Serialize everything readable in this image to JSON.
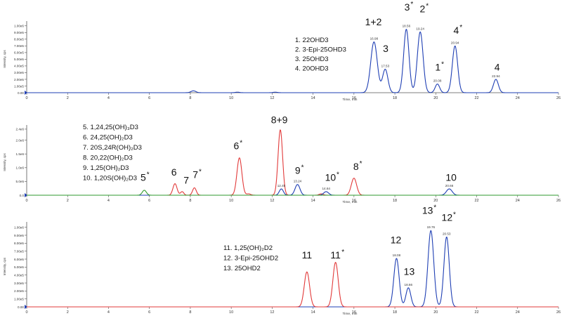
{
  "chart_data": [
    {
      "type": "line",
      "ylabel": "Intensity, cps",
      "xlabel": "Time, min",
      "xlim": [
        0,
        26
      ],
      "ylim": [
        0,
        1050000
      ],
      "xticks": [
        0,
        2,
        4,
        6,
        8,
        10,
        12,
        14,
        16,
        18,
        20,
        22,
        24,
        26
      ],
      "yticks": [
        {
          "v": 0,
          "label": "0.00"
        },
        {
          "v": 100000,
          "label": "1.00e5"
        },
        {
          "v": 200000,
          "label": "2.00e5"
        },
        {
          "v": 300000,
          "label": "3.00e5"
        },
        {
          "v": 400000,
          "label": "4.00e5"
        },
        {
          "v": 500000,
          "label": "5.00e5"
        },
        {
          "v": 600000,
          "label": "6.00e5"
        },
        {
          "v": 700000,
          "label": "7.00e5"
        },
        {
          "v": 800000,
          "label": "8.00e5"
        },
        {
          "v": 900000,
          "label": "9.00e5"
        },
        {
          "v": 1000000,
          "label": "1.00e6"
        }
      ],
      "legend": [
        "1.   22OHD3",
        "2.   3-Epi-25OHD3",
        "3.   25OHD3",
        "4.   20OHD3"
      ],
      "series": [
        {
          "color": "#1f3fb4",
          "peaks": [
            {
              "t": 8.15,
              "h": 28000,
              "w": 0.12
            },
            {
              "t": 10.3,
              "h": 8000,
              "w": 0.1
            },
            {
              "t": 12.15,
              "h": 8000,
              "w": 0.1
            },
            {
              "t": 16.98,
              "h": 760000,
              "w": 0.16
            },
            {
              "t": 17.53,
              "h": 350000,
              "w": 0.13
            },
            {
              "t": 18.56,
              "h": 950000,
              "w": 0.13
            },
            {
              "t": 19.24,
              "h": 910000,
              "w": 0.14
            },
            {
              "t": 20.08,
              "h": 130000,
              "w": 0.11
            },
            {
              "t": 20.94,
              "h": 700000,
              "w": 0.13
            },
            {
              "t": 22.94,
              "h": 200000,
              "w": 0.12
            }
          ]
        }
      ],
      "peak_labels": [
        {
          "t": 16.98,
          "h": 760000,
          "text": "16.98"
        },
        {
          "t": 17.53,
          "h": 350000,
          "text": "17.53"
        },
        {
          "t": 18.56,
          "h": 950000,
          "text": "18.56"
        },
        {
          "t": 19.24,
          "h": 910000,
          "text": "19.24"
        },
        {
          "t": 20.08,
          "h": 130000,
          "text": "20.08"
        },
        {
          "t": 20.94,
          "h": 700000,
          "text": "20.94"
        },
        {
          "t": 22.94,
          "h": 200000,
          "text": "22.94"
        }
      ],
      "annotations": [
        {
          "text": "1+2",
          "t": 16.95,
          "y": 1010000,
          "star": false
        },
        {
          "text": "3",
          "t": 17.55,
          "y": 610000,
          "star": false
        },
        {
          "text": "3",
          "t": 18.6,
          "y": 1230000,
          "star": true
        },
        {
          "text": "2",
          "t": 19.35,
          "y": 1200000,
          "star": true
        },
        {
          "text": "1",
          "t": 20.1,
          "y": 330000,
          "star": true
        },
        {
          "text": "4",
          "t": 21.0,
          "y": 880000,
          "star": true
        },
        {
          "text": "4",
          "t": 23.0,
          "y": 330000,
          "star": false
        }
      ]
    },
    {
      "type": "line",
      "ylabel": "Intensity, cps",
      "xlabel": "Time, min",
      "xlim": [
        0,
        26
      ],
      "ylim": [
        0,
        2500000
      ],
      "xticks": [
        0,
        2,
        4,
        6,
        8,
        10,
        12,
        14,
        16,
        18,
        20,
        22,
        24,
        26
      ],
      "yticks": [
        {
          "v": 0,
          "label": "0.0"
        },
        {
          "v": 500000,
          "label": "5.0e5"
        },
        {
          "v": 1000000,
          "label": "1.0e6"
        },
        {
          "v": 1500000,
          "label": "1.5e6"
        },
        {
          "v": 2000000,
          "label": "2.0e6"
        },
        {
          "v": 2400000,
          "label": "2.4e6"
        }
      ],
      "legend": [
        "5.   1,24,25(OH)₃D3",
        "6.   24,25(OH)₂D3",
        "7.   20S,24R(OH)₂D3",
        "8.   20,22(OH)₂D3",
        "9.   1,25(OH)₂D3",
        "10.  1,20S(OH)₂D3"
      ],
      "series": [
        {
          "color": "#e23a3a",
          "peaks": [
            {
              "t": 7.25,
              "h": 420000,
              "w": 0.1
            },
            {
              "t": 7.6,
              "h": 130000,
              "w": 0.08
            },
            {
              "t": 8.2,
              "h": 270000,
              "w": 0.09
            },
            {
              "t": 10.4,
              "h": 1360000,
              "w": 0.12
            },
            {
              "t": 10.85,
              "h": 50000,
              "w": 0.1
            },
            {
              "t": 12.4,
              "h": 2380000,
              "w": 0.11
            },
            {
              "t": 14.4,
              "h": 50000,
              "w": 0.1
            },
            {
              "t": 16.0,
              "h": 620000,
              "w": 0.13
            }
          ]
        },
        {
          "color": "#1f3fb4",
          "peaks": [
            {
              "t": 12.45,
              "h": 230000,
              "w": 0.1
            },
            {
              "t": 13.24,
              "h": 390000,
              "w": 0.12
            },
            {
              "t": 14.64,
              "h": 130000,
              "w": 0.12
            },
            {
              "t": 20.66,
              "h": 230000,
              "w": 0.14
            }
          ]
        },
        {
          "color": "#2e9a2e",
          "peaks": [
            {
              "t": 5.75,
              "h": 180000,
              "w": 0.1
            }
          ]
        }
      ],
      "peak_labels": [
        {
          "t": 12.45,
          "h": 230000,
          "text": "12.45"
        },
        {
          "t": 13.24,
          "h": 390000,
          "text": "13.24"
        },
        {
          "t": 14.64,
          "h": 130000,
          "text": "14.64"
        },
        {
          "t": 20.66,
          "h": 230000,
          "text": "20.66"
        }
      ],
      "annotations": [
        {
          "text": "5",
          "t": 5.7,
          "y": 520000,
          "star": true
        },
        {
          "text": "6",
          "t": 7.2,
          "y": 720000,
          "star": false
        },
        {
          "text": "7",
          "t": 7.8,
          "y": 420000,
          "star": false
        },
        {
          "text": "7",
          "t": 8.25,
          "y": 620000,
          "star": true
        },
        {
          "text": "6",
          "t": 10.25,
          "y": 1670000,
          "star": true
        },
        {
          "text": "8+9",
          "t": 12.35,
          "y": 2620000,
          "star": false
        },
        {
          "text": "9",
          "t": 13.25,
          "y": 780000,
          "star": true
        },
        {
          "text": "10",
          "t": 14.85,
          "y": 520000,
          "star": true
        },
        {
          "text": "8",
          "t": 16.1,
          "y": 920000,
          "star": true
        },
        {
          "text": "10",
          "t": 20.75,
          "y": 520000,
          "star": false
        }
      ]
    },
    {
      "type": "line",
      "ylabel": "Intensity, cps",
      "xlabel": "Time, min",
      "xlim": [
        0,
        26
      ],
      "ylim": [
        0,
        1050000
      ],
      "xticks": [
        0,
        2,
        4,
        6,
        8,
        10,
        12,
        14,
        16,
        18,
        20,
        22,
        24,
        26
      ],
      "yticks": [
        {
          "v": 0,
          "label": "0.00"
        },
        {
          "v": 100000,
          "label": "1.00e5"
        },
        {
          "v": 200000,
          "label": "2.00e5"
        },
        {
          "v": 300000,
          "label": "3.00e5"
        },
        {
          "v": 400000,
          "label": "4.00e5"
        },
        {
          "v": 500000,
          "label": "5.00e5"
        },
        {
          "v": 600000,
          "label": "6.00e5"
        },
        {
          "v": 700000,
          "label": "7.00e5"
        },
        {
          "v": 800000,
          "label": "8.00e5"
        },
        {
          "v": 900000,
          "label": "9.00e5"
        },
        {
          "v": 1000000,
          "label": "1.00e6"
        }
      ],
      "legend": [
        "11.  1,25(OH)₂D2",
        "12.  3-Epi-25OHD2",
        "13.  25OHD2"
      ],
      "series": [
        {
          "color": "#1f3fb4",
          "peaks": [
            {
              "t": 18.08,
              "h": 610000,
              "w": 0.13
            },
            {
              "t": 18.66,
              "h": 240000,
              "w": 0.12
            },
            {
              "t": 19.76,
              "h": 960000,
              "w": 0.14
            },
            {
              "t": 20.53,
              "h": 880000,
              "w": 0.13
            }
          ]
        },
        {
          "color": "#e23a3a",
          "peaks": [
            {
              "t": 13.7,
              "h": 440000,
              "w": 0.13
            },
            {
              "t": 15.1,
              "h": 560000,
              "w": 0.13
            }
          ]
        }
      ],
      "peak_labels": [
        {
          "t": 18.08,
          "h": 610000,
          "text": "18.08"
        },
        {
          "t": 18.66,
          "h": 240000,
          "text": "18.66"
        },
        {
          "t": 19.76,
          "h": 960000,
          "text": "19.76"
        },
        {
          "t": 20.53,
          "h": 880000,
          "text": "20.53"
        }
      ],
      "annotations": [
        {
          "text": "11",
          "t": 13.7,
          "y": 610000,
          "star": false
        },
        {
          "text": "11",
          "t": 15.1,
          "y": 610000,
          "star": true
        },
        {
          "text": "12",
          "t": 18.05,
          "y": 800000,
          "star": false
        },
        {
          "text": "13",
          "t": 18.7,
          "y": 400000,
          "star": false
        },
        {
          "text": "13",
          "t": 19.6,
          "y": 1170000,
          "star": true
        },
        {
          "text": "12",
          "t": 20.55,
          "y": 1080000,
          "star": true
        }
      ]
    }
  ]
}
